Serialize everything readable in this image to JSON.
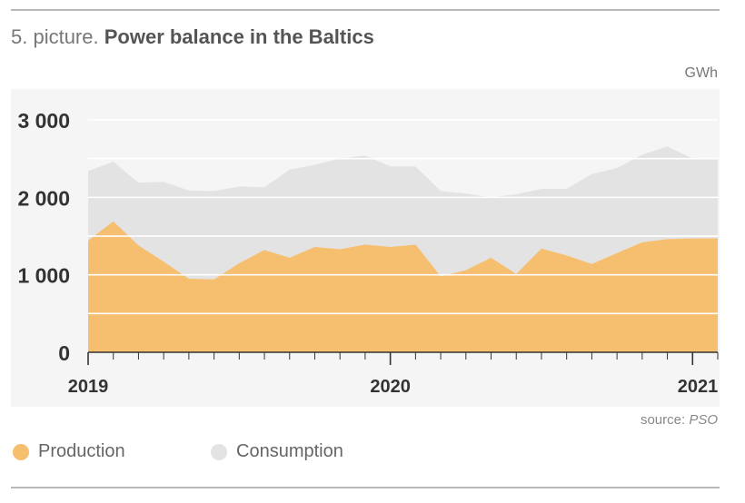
{
  "header": {
    "picture_label": "5. picture.",
    "title": "Power balance in the Baltics",
    "unit": "GWh",
    "source_label": "source:",
    "source_name": "PSO"
  },
  "colors": {
    "production": "#f6bf6f",
    "consumption": "#e4e3e4",
    "background": "#f5f5f5"
  },
  "legend": {
    "production": "Production",
    "consumption": "Consumption"
  },
  "chart_data": {
    "type": "area",
    "title": "Power balance in the Baltics",
    "ylabel": "GWh",
    "ylim": [
      0,
      3200
    ],
    "yticks": [
      0,
      1000,
      2000,
      3000
    ],
    "ytick_labels": [
      "0",
      "1 000",
      "2 000",
      "3 000"
    ],
    "xlim": [
      "2019-01",
      "2021-02"
    ],
    "xtick_labels": [
      "2019",
      "2020",
      "2021"
    ],
    "xtick_dates": [
      "2019-01",
      "2020-01",
      "2021-01"
    ],
    "grid": true,
    "legend_position": "bottom",
    "x": [
      "2019-01",
      "2019-02",
      "2019-03",
      "2019-04",
      "2019-05",
      "2019-06",
      "2019-07",
      "2019-08",
      "2019-09",
      "2019-10",
      "2019-11",
      "2019-12",
      "2020-01",
      "2020-02",
      "2020-03",
      "2020-04",
      "2020-05",
      "2020-06",
      "2020-07",
      "2020-08",
      "2020-09",
      "2020-10",
      "2020-11",
      "2020-12",
      "2021-01",
      "2021-02"
    ],
    "series": [
      {
        "name": "Consumption",
        "values": [
          2340,
          2460,
          2190,
          2200,
          2090,
          2080,
          2140,
          2130,
          2360,
          2420,
          2500,
          2540,
          2400,
          2400,
          2080,
          2050,
          2000,
          2040,
          2110,
          2110,
          2300,
          2380,
          2550,
          2660,
          2500,
          2500
        ]
      },
      {
        "name": "Production",
        "values": [
          1440,
          1690,
          1380,
          1170,
          950,
          940,
          1150,
          1320,
          1220,
          1360,
          1330,
          1390,
          1360,
          1390,
          980,
          1060,
          1220,
          1010,
          1340,
          1250,
          1140,
          1280,
          1420,
          1460,
          1470,
          1470
        ]
      }
    ]
  }
}
